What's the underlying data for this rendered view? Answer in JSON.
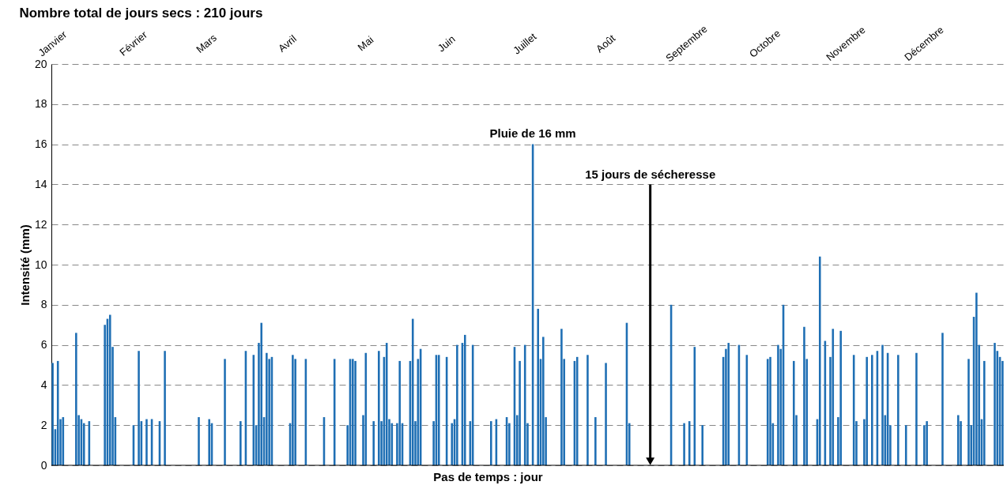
{
  "chart_data": {
    "type": "bar",
    "title": "Nombre total de jours secs : 210 jours",
    "xlabel": "Pas de temps : jour",
    "ylabel": "Intensité (mm)",
    "categories": [
      "Janvier",
      null,
      null,
      null,
      null,
      null,
      null,
      null,
      null,
      null,
      null,
      null,
      null,
      null,
      null,
      null,
      null,
      null,
      null,
      null,
      null,
      null,
      null,
      null,
      null,
      null,
      null,
      null,
      null,
      null,
      null,
      "Février",
      null,
      null,
      null,
      null,
      null,
      null,
      null,
      null,
      null,
      null,
      null,
      null,
      null,
      null,
      null,
      null,
      null,
      null,
      null,
      null,
      null,
      null,
      null,
      null,
      null,
      null,
      null,
      "Mars",
      null,
      null,
      null,
      null,
      null,
      null,
      null,
      null,
      null,
      null,
      null,
      null,
      null,
      null,
      null,
      null,
      null,
      null,
      null,
      null,
      null,
      null,
      null,
      null,
      null,
      null,
      null,
      null,
      null,
      null,
      "Avril",
      null,
      null,
      null,
      null,
      null,
      null,
      null,
      null,
      null,
      null,
      null,
      null,
      null,
      null,
      null,
      null,
      null,
      null,
      null,
      null,
      null,
      null,
      null,
      null,
      null,
      null,
      null,
      null,
      null,
      "Mai",
      null,
      null,
      null,
      null,
      null,
      null,
      null,
      null,
      null,
      null,
      null,
      null,
      null,
      null,
      null,
      null,
      null,
      null,
      null,
      null,
      null,
      null,
      null,
      null,
      null,
      null,
      null,
      null,
      null,
      null,
      "Juin",
      null,
      null,
      null,
      null,
      null,
      null,
      null,
      null,
      null,
      null,
      null,
      null,
      null,
      null,
      null,
      null,
      null,
      null,
      null,
      null,
      null,
      null,
      null,
      null,
      null,
      null,
      null,
      null,
      null,
      "Juillet",
      null,
      null,
      null,
      null,
      null,
      null,
      null,
      null,
      null,
      null,
      null,
      null,
      null,
      null,
      null,
      null,
      null,
      null,
      null,
      null,
      null,
      null,
      null,
      null,
      null,
      null,
      null,
      null,
      null,
      null,
      "Août",
      null,
      null,
      null,
      null,
      null,
      null,
      null,
      null,
      null,
      null,
      null,
      null,
      null,
      null,
      null,
      null,
      null,
      null,
      null,
      null,
      null,
      null,
      null,
      null,
      null,
      null,
      null,
      null,
      null,
      null,
      "Septembre",
      null,
      null,
      null,
      null,
      null,
      null,
      null,
      null,
      null,
      null,
      null,
      null,
      null,
      null,
      null,
      null,
      null,
      null,
      null,
      null,
      null,
      null,
      null,
      null,
      null,
      null,
      null,
      null,
      null,
      "Octobre",
      null,
      null,
      null,
      null,
      null,
      null,
      null,
      null,
      null,
      null,
      null,
      null,
      null,
      null,
      null,
      null,
      null,
      null,
      null,
      null,
      null,
      null,
      null,
      null,
      null,
      null,
      null,
      null,
      null,
      null,
      "Novembre",
      null,
      null,
      null,
      null,
      null,
      null,
      null,
      null,
      null,
      null,
      null,
      null,
      null,
      null,
      null,
      null,
      null,
      null,
      null,
      null,
      null,
      null,
      null,
      null,
      null,
      null,
      null,
      null,
      null,
      "Décembre",
      null,
      null,
      null,
      null,
      null,
      null,
      null,
      null,
      null,
      null,
      null,
      null,
      null,
      null,
      null,
      null,
      null,
      null,
      null,
      null,
      null,
      null,
      null,
      null,
      null,
      null,
      null,
      null,
      null,
      null
    ],
    "series": [
      {
        "color": "#1f6fb4",
        "values": [
          5.1,
          1.8,
          5.2,
          2.3,
          2.4,
          null,
          null,
          null,
          null,
          6.6,
          2.5,
          2.3,
          2.1,
          null,
          2.2,
          null,
          null,
          null,
          null,
          null,
          7.0,
          7.3,
          7.5,
          5.9,
          2.4,
          null,
          null,
          null,
          null,
          null,
          null,
          2.0,
          null,
          5.7,
          2.2,
          null,
          2.3,
          null,
          2.3,
          null,
          null,
          2.2,
          null,
          5.7,
          null,
          null,
          null,
          null,
          null,
          null,
          null,
          null,
          null,
          null,
          null,
          null,
          2.4,
          null,
          null,
          null,
          2.3,
          2.1,
          null,
          null,
          null,
          null,
          5.3,
          null,
          null,
          null,
          null,
          null,
          2.2,
          null,
          5.7,
          null,
          null,
          5.5,
          2.0,
          6.1,
          7.1,
          2.4,
          5.6,
          5.3,
          5.4,
          null,
          null,
          null,
          null,
          null,
          null,
          2.1,
          5.5,
          5.3,
          null,
          null,
          null,
          5.3,
          null,
          null,
          null,
          null,
          null,
          null,
          2.4,
          null,
          null,
          null,
          5.3,
          null,
          null,
          null,
          null,
          2.0,
          5.3,
          5.3,
          5.2,
          null,
          null,
          2.5,
          5.6,
          null,
          null,
          2.2,
          null,
          5.7,
          2.2,
          5.4,
          6.1,
          2.3,
          2.1,
          null,
          2.1,
          5.2,
          2.1,
          null,
          null,
          5.2,
          7.3,
          2.2,
          5.3,
          5.8,
          null,
          null,
          null,
          null,
          2.2,
          5.5,
          5.5,
          null,
          null,
          5.4,
          null,
          2.1,
          2.3,
          6.0,
          null,
          6.1,
          6.5,
          null,
          2.2,
          6.0,
          null,
          null,
          null,
          null,
          null,
          null,
          2.2,
          null,
          2.3,
          null,
          null,
          null,
          2.4,
          2.1,
          null,
          5.9,
          2.5,
          5.2,
          null,
          6.0,
          2.1,
          null,
          16.0,
          null,
          7.8,
          5.3,
          6.4,
          2.4,
          null,
          null,
          null,
          null,
          null,
          6.8,
          5.3,
          null,
          null,
          null,
          5.2,
          5.4,
          null,
          null,
          null,
          5.5,
          null,
          null,
          2.4,
          null,
          null,
          null,
          5.1,
          null,
          null,
          null,
          null,
          null,
          null,
          null,
          7.1,
          2.1,
          null,
          null,
          null,
          null,
          null,
          null,
          null,
          null,
          null,
          null,
          null,
          null,
          null,
          null,
          null,
          8.0,
          null,
          null,
          null,
          null,
          2.1,
          null,
          2.2,
          null,
          5.9,
          null,
          null,
          2.0,
          null,
          null,
          null,
          null,
          null,
          null,
          null,
          5.4,
          5.8,
          6.1,
          null,
          null,
          null,
          6.0,
          null,
          null,
          5.5,
          null,
          null,
          null,
          null,
          null,
          null,
          null,
          5.3,
          5.4,
          2.1,
          null,
          6.0,
          5.8,
          8.0,
          null,
          null,
          null,
          5.2,
          2.5,
          null,
          null,
          6.9,
          5.3,
          null,
          null,
          null,
          2.3,
          10.4,
          null,
          6.2,
          null,
          5.4,
          6.8,
          null,
          2.4,
          6.7,
          null,
          null,
          null,
          null,
          5.5,
          2.2,
          null,
          null,
          2.3,
          5.4,
          null,
          5.5,
          null,
          5.7,
          null,
          6.0,
          2.5,
          5.6,
          2.0,
          null,
          null,
          5.5,
          null,
          null,
          2.0,
          null,
          null,
          null,
          5.6,
          null,
          null,
          2.0,
          2.2,
          null,
          null,
          null,
          null,
          null,
          6.6,
          null,
          null,
          null,
          null,
          null,
          2.5,
          2.2,
          null,
          null,
          5.3,
          2.0,
          7.4,
          8.6,
          6.0,
          2.3,
          5.2,
          null,
          null,
          null,
          6.1,
          5.7,
          5.4,
          5.2
        ]
      }
    ],
    "ylim": [
      0,
      20
    ],
    "yticks": [
      0,
      2,
      4,
      6,
      8,
      10,
      12,
      14,
      16,
      18,
      20
    ],
    "grid": "y",
    "annotations": [
      "Pluie de 16 mm",
      "15 jours de sécheresse"
    ]
  }
}
